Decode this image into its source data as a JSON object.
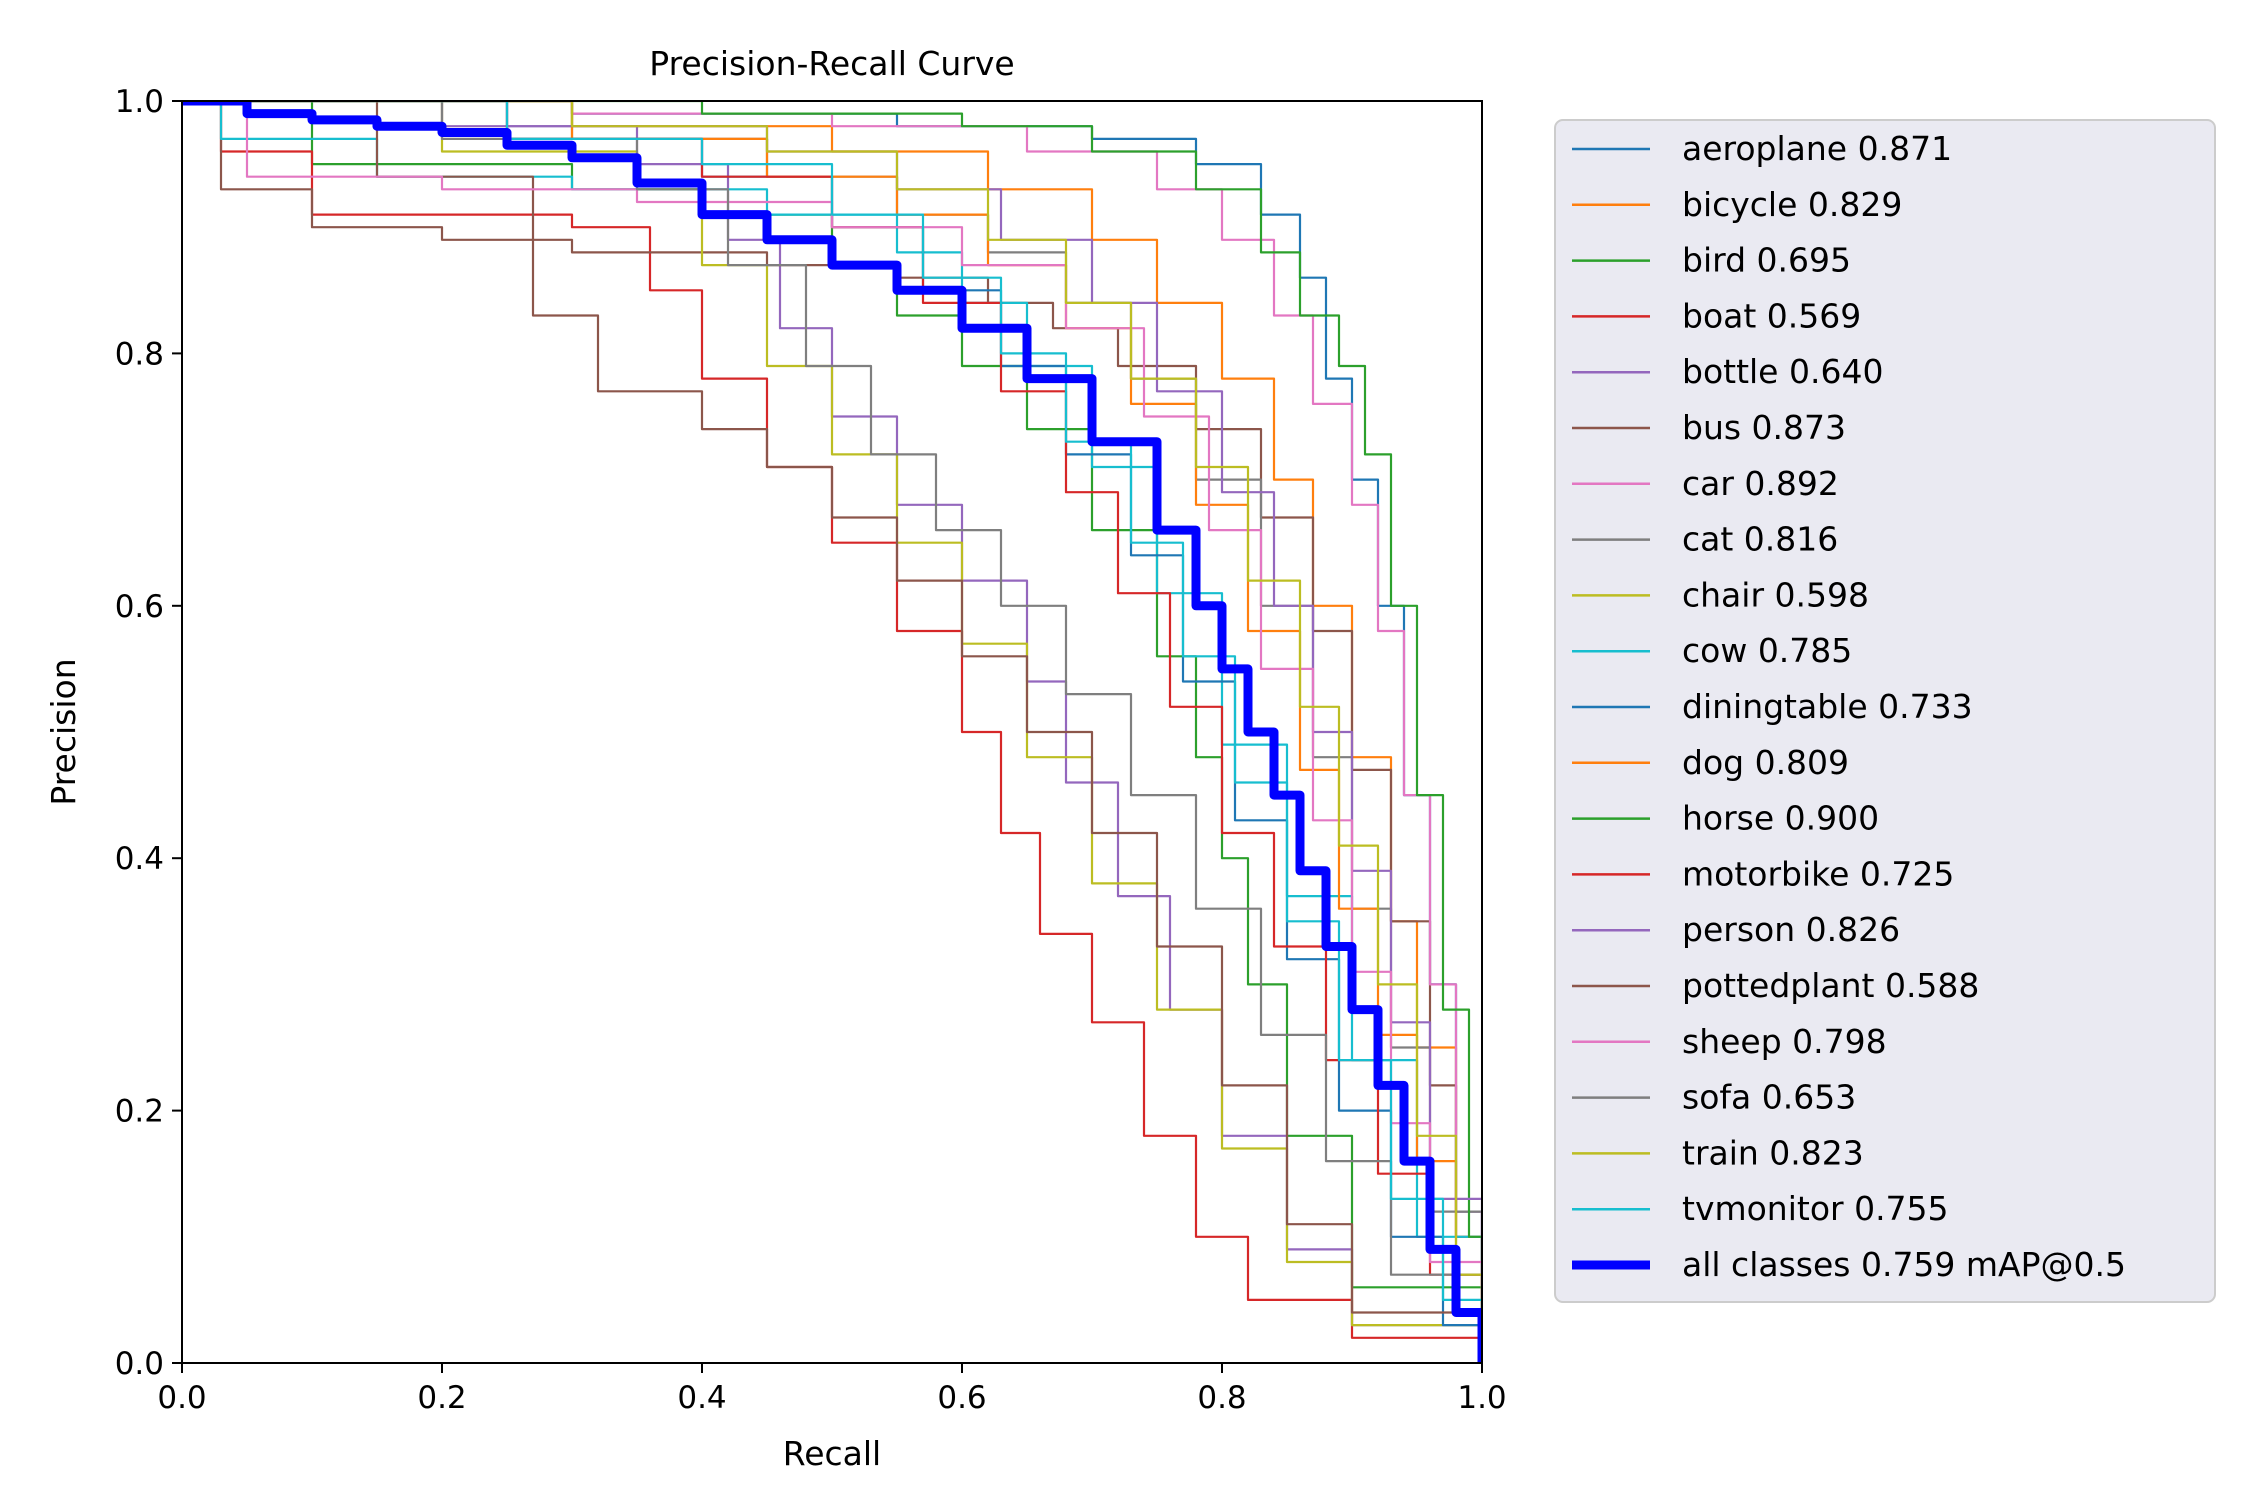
{
  "chart_data": {
    "type": "line",
    "title": "Precision-Recall Curve",
    "xlabel": "Recall",
    "ylabel": "Precision",
    "xlim": [
      0,
      1
    ],
    "ylim": [
      0,
      1
    ],
    "xticks": [
      "0.0",
      "0.2",
      "0.4",
      "0.6",
      "0.8",
      "1.0"
    ],
    "yticks": [
      "0.0",
      "0.2",
      "0.4",
      "0.6",
      "0.8",
      "1.0"
    ],
    "grid": false,
    "legend_position": "outside-right",
    "series": [
      {
        "name": "aeroplane 0.871",
        "color": "#1f77b4",
        "x": [
          0,
          0.3,
          0.55,
          0.7,
          0.78,
          0.83,
          0.86,
          0.88,
          0.9,
          0.92,
          0.94,
          0.96,
          0.98,
          1.0
        ],
        "y": [
          1,
          0.99,
          0.98,
          0.97,
          0.95,
          0.91,
          0.86,
          0.78,
          0.7,
          0.6,
          0.45,
          0.3,
          0.12,
          0
        ]
      },
      {
        "name": "bicycle 0.829",
        "color": "#ff7f0e",
        "x": [
          0,
          0.3,
          0.5,
          0.62,
          0.7,
          0.75,
          0.8,
          0.84,
          0.87,
          0.9,
          0.93,
          0.95,
          0.98,
          1.0
        ],
        "y": [
          1,
          0.98,
          0.96,
          0.93,
          0.89,
          0.84,
          0.78,
          0.7,
          0.6,
          0.48,
          0.35,
          0.25,
          0.1,
          0
        ]
      },
      {
        "name": "bird 0.695",
        "color": "#2ca02c",
        "x": [
          0,
          0.1,
          0.3,
          0.4,
          0.5,
          0.55,
          0.6,
          0.65,
          0.7,
          0.75,
          0.78,
          0.8,
          0.82,
          0.85,
          0.9,
          1.0
        ],
        "y": [
          1,
          0.95,
          0.93,
          0.91,
          0.87,
          0.83,
          0.79,
          0.74,
          0.66,
          0.56,
          0.48,
          0.4,
          0.3,
          0.18,
          0.06,
          0
        ]
      },
      {
        "name": "boat 0.569",
        "color": "#d62728",
        "x": [
          0,
          0.03,
          0.1,
          0.3,
          0.36,
          0.4,
          0.45,
          0.5,
          0.55,
          0.6,
          0.63,
          0.66,
          0.7,
          0.74,
          0.78,
          0.82,
          0.9,
          1.0
        ],
        "y": [
          1,
          0.96,
          0.91,
          0.9,
          0.85,
          0.78,
          0.71,
          0.65,
          0.58,
          0.5,
          0.42,
          0.34,
          0.27,
          0.18,
          0.1,
          0.05,
          0.02,
          0
        ]
      },
      {
        "name": "bottle 0.640",
        "color": "#9467bd",
        "x": [
          0,
          0.2,
          0.35,
          0.42,
          0.46,
          0.5,
          0.55,
          0.6,
          0.65,
          0.68,
          0.72,
          0.76,
          0.8,
          0.85,
          0.9,
          1.0
        ],
        "y": [
          1,
          0.98,
          0.95,
          0.89,
          0.82,
          0.75,
          0.68,
          0.62,
          0.54,
          0.46,
          0.37,
          0.28,
          0.18,
          0.09,
          0.03,
          0
        ]
      },
      {
        "name": "bus 0.873",
        "color": "#8c564b",
        "x": [
          0,
          0.03,
          0.1,
          0.2,
          0.3,
          0.45,
          0.55,
          0.62,
          0.67,
          0.72,
          0.78,
          0.83,
          0.87,
          0.9,
          0.93,
          0.96,
          0.98,
          1.0
        ],
        "y": [
          1,
          0.93,
          0.9,
          0.89,
          0.88,
          0.87,
          0.86,
          0.84,
          0.82,
          0.79,
          0.74,
          0.67,
          0.58,
          0.47,
          0.35,
          0.22,
          0.1,
          0
        ]
      },
      {
        "name": "car 0.892",
        "color": "#e377c2",
        "x": [
          0,
          0.3,
          0.5,
          0.65,
          0.75,
          0.8,
          0.84,
          0.87,
          0.9,
          0.92,
          0.94,
          0.96,
          0.98,
          1.0
        ],
        "y": [
          1,
          0.99,
          0.98,
          0.96,
          0.93,
          0.89,
          0.83,
          0.76,
          0.68,
          0.58,
          0.45,
          0.3,
          0.12,
          0
        ]
      },
      {
        "name": "cat 0.816",
        "color": "#7f7f7f",
        "x": [
          0,
          0.3,
          0.45,
          0.55,
          0.62,
          0.68,
          0.73,
          0.78,
          0.83,
          0.87,
          0.9,
          0.93,
          0.96,
          1.0
        ],
        "y": [
          1,
          0.97,
          0.94,
          0.91,
          0.88,
          0.84,
          0.78,
          0.7,
          0.6,
          0.48,
          0.36,
          0.25,
          0.12,
          0
        ]
      },
      {
        "name": "chair 0.598",
        "color": "#bcbd22",
        "x": [
          0,
          0.2,
          0.35,
          0.4,
          0.45,
          0.5,
          0.55,
          0.6,
          0.65,
          0.7,
          0.75,
          0.8,
          0.85,
          0.9,
          1.0
        ],
        "y": [
          1,
          0.96,
          0.93,
          0.87,
          0.79,
          0.72,
          0.65,
          0.57,
          0.48,
          0.38,
          0.28,
          0.17,
          0.08,
          0.03,
          0
        ]
      },
      {
        "name": "cow 0.785",
        "color": "#17becf",
        "x": [
          0,
          0.03,
          0.15,
          0.3,
          0.45,
          0.55,
          0.6,
          0.65,
          0.7,
          0.75,
          0.8,
          0.85,
          0.9,
          0.95,
          1.0
        ],
        "y": [
          1,
          0.97,
          0.94,
          0.93,
          0.91,
          0.88,
          0.84,
          0.79,
          0.71,
          0.61,
          0.49,
          0.37,
          0.24,
          0.1,
          0
        ]
      },
      {
        "name": "diningtable 0.733",
        "color": "#1f77b4",
        "x": [
          0,
          0.25,
          0.4,
          0.5,
          0.57,
          0.63,
          0.68,
          0.73,
          0.77,
          0.81,
          0.85,
          0.89,
          0.93,
          0.97,
          1.0
        ],
        "y": [
          1,
          0.97,
          0.94,
          0.9,
          0.85,
          0.79,
          0.72,
          0.64,
          0.54,
          0.43,
          0.32,
          0.2,
          0.1,
          0.03,
          0
        ]
      },
      {
        "name": "dog 0.809",
        "color": "#ff7f0e",
        "x": [
          0,
          0.3,
          0.45,
          0.55,
          0.62,
          0.68,
          0.73,
          0.78,
          0.82,
          0.86,
          0.89,
          0.92,
          0.95,
          0.98,
          1.0
        ],
        "y": [
          1,
          0.97,
          0.94,
          0.91,
          0.87,
          0.82,
          0.76,
          0.68,
          0.58,
          0.47,
          0.36,
          0.26,
          0.16,
          0.07,
          0
        ]
      },
      {
        "name": "horse 0.900",
        "color": "#2ca02c",
        "x": [
          0,
          0.4,
          0.6,
          0.7,
          0.78,
          0.83,
          0.86,
          0.89,
          0.91,
          0.93,
          0.95,
          0.97,
          0.99,
          1.0
        ],
        "y": [
          1,
          0.99,
          0.98,
          0.96,
          0.93,
          0.88,
          0.83,
          0.79,
          0.72,
          0.6,
          0.45,
          0.28,
          0.1,
          0
        ]
      },
      {
        "name": "motorbike 0.725",
        "color": "#d62728",
        "x": [
          0,
          0.25,
          0.4,
          0.5,
          0.57,
          0.63,
          0.68,
          0.72,
          0.76,
          0.8,
          0.84,
          0.88,
          0.92,
          0.96,
          1.0
        ],
        "y": [
          1,
          0.97,
          0.94,
          0.9,
          0.84,
          0.77,
          0.69,
          0.61,
          0.52,
          0.42,
          0.33,
          0.24,
          0.15,
          0.07,
          0
        ]
      },
      {
        "name": "person 0.826",
        "color": "#9467bd",
        "x": [
          0,
          0.25,
          0.45,
          0.55,
          0.63,
          0.7,
          0.75,
          0.8,
          0.84,
          0.87,
          0.9,
          0.93,
          0.96,
          1.0
        ],
        "y": [
          1,
          0.98,
          0.96,
          0.93,
          0.89,
          0.84,
          0.77,
          0.69,
          0.6,
          0.5,
          0.39,
          0.27,
          0.13,
          0
        ]
      },
      {
        "name": "pottedplant 0.588",
        "color": "#8c564b",
        "x": [
          0,
          0.15,
          0.27,
          0.32,
          0.4,
          0.45,
          0.5,
          0.55,
          0.6,
          0.65,
          0.7,
          0.75,
          0.8,
          0.85,
          0.9,
          1.0
        ],
        "y": [
          1,
          0.94,
          0.83,
          0.77,
          0.74,
          0.71,
          0.67,
          0.62,
          0.56,
          0.5,
          0.42,
          0.33,
          0.22,
          0.11,
          0.04,
          0
        ]
      },
      {
        "name": "sheep 0.798",
        "color": "#e377c2",
        "x": [
          0,
          0.05,
          0.2,
          0.35,
          0.5,
          0.6,
          0.68,
          0.74,
          0.79,
          0.83,
          0.87,
          0.9,
          0.93,
          0.96,
          1.0
        ],
        "y": [
          1,
          0.94,
          0.93,
          0.92,
          0.9,
          0.87,
          0.82,
          0.75,
          0.66,
          0.55,
          0.43,
          0.31,
          0.19,
          0.08,
          0
        ]
      },
      {
        "name": "sofa 0.653",
        "color": "#7f7f7f",
        "x": [
          0,
          0.2,
          0.35,
          0.42,
          0.48,
          0.53,
          0.58,
          0.63,
          0.68,
          0.73,
          0.78,
          0.83,
          0.88,
          0.93,
          1.0
        ],
        "y": [
          1,
          0.97,
          0.93,
          0.87,
          0.79,
          0.72,
          0.66,
          0.6,
          0.53,
          0.45,
          0.36,
          0.26,
          0.16,
          0.07,
          0
        ]
      },
      {
        "name": "train 0.823",
        "color": "#bcbd22",
        "x": [
          0,
          0.3,
          0.45,
          0.55,
          0.62,
          0.68,
          0.73,
          0.78,
          0.82,
          0.86,
          0.89,
          0.92,
          0.95,
          0.98,
          1.0
        ],
        "y": [
          1,
          0.98,
          0.96,
          0.93,
          0.89,
          0.84,
          0.78,
          0.71,
          0.62,
          0.52,
          0.41,
          0.3,
          0.18,
          0.07,
          0
        ]
      },
      {
        "name": "tvmonitor 0.755",
        "color": "#17becf",
        "x": [
          0,
          0.25,
          0.4,
          0.5,
          0.57,
          0.63,
          0.68,
          0.73,
          0.77,
          0.81,
          0.85,
          0.89,
          0.93,
          0.97,
          1.0
        ],
        "y": [
          1,
          0.97,
          0.95,
          0.91,
          0.86,
          0.8,
          0.73,
          0.65,
          0.56,
          0.46,
          0.35,
          0.24,
          0.13,
          0.05,
          0
        ]
      },
      {
        "name": "all classes 0.759 mAP@0.5",
        "color": "#0000ff",
        "x": [
          0,
          0.05,
          0.1,
          0.15,
          0.2,
          0.25,
          0.3,
          0.35,
          0.4,
          0.45,
          0.5,
          0.55,
          0.6,
          0.65,
          0.7,
          0.75,
          0.78,
          0.8,
          0.82,
          0.84,
          0.86,
          0.88,
          0.9,
          0.92,
          0.94,
          0.96,
          0.98,
          1.0
        ],
        "y": [
          1,
          0.99,
          0.985,
          0.98,
          0.975,
          0.965,
          0.955,
          0.935,
          0.91,
          0.89,
          0.87,
          0.85,
          0.82,
          0.78,
          0.73,
          0.66,
          0.6,
          0.55,
          0.5,
          0.45,
          0.39,
          0.33,
          0.28,
          0.22,
          0.16,
          0.09,
          0.04,
          0
        ]
      }
    ]
  }
}
